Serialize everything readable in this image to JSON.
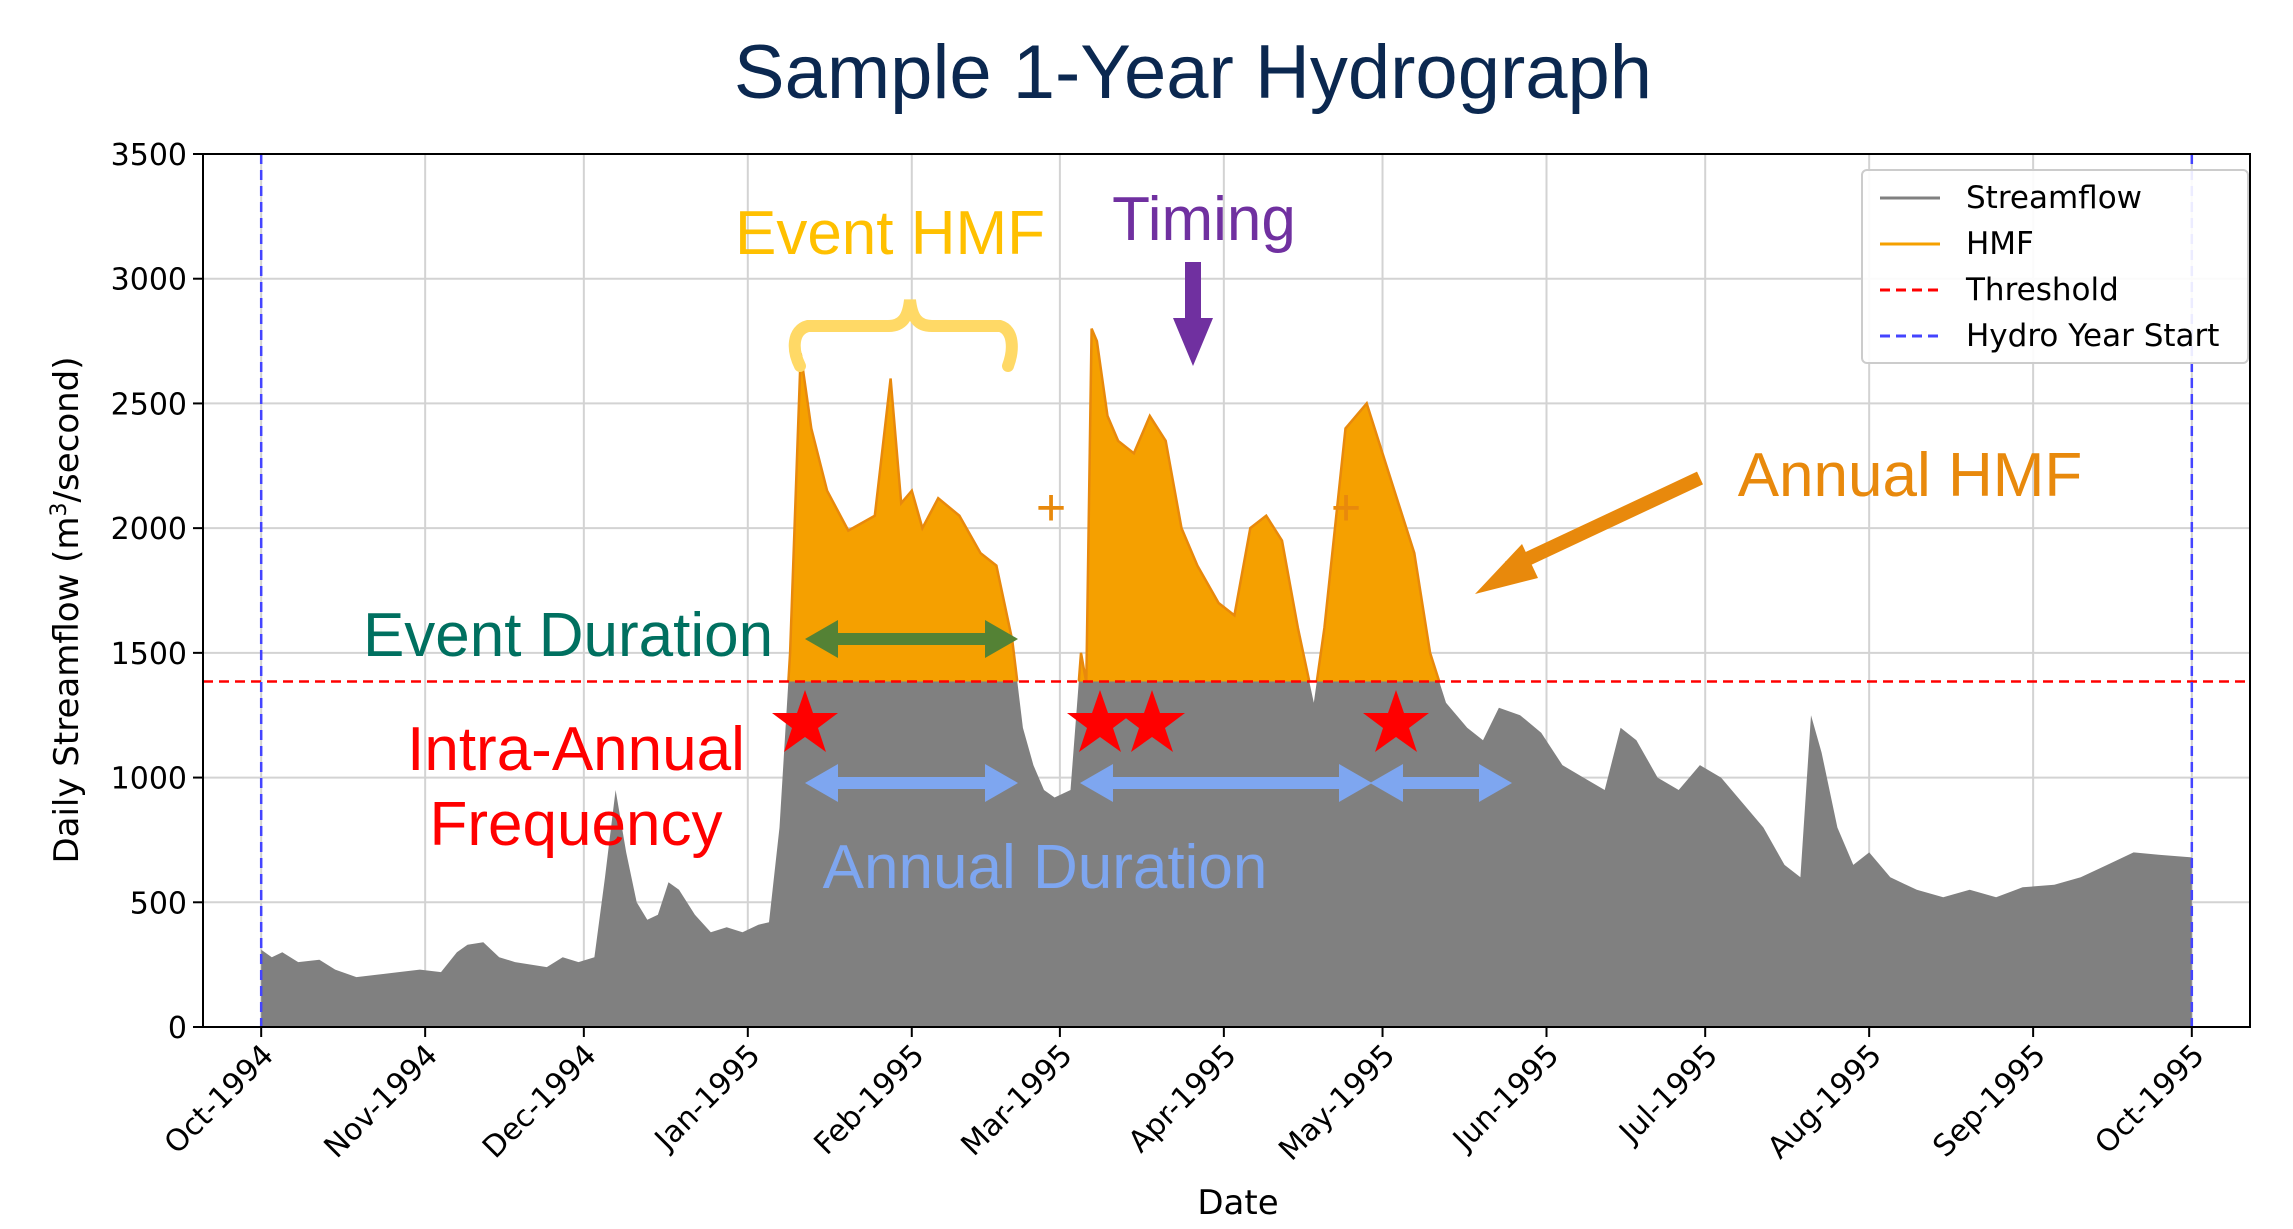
{
  "chart_data": {
    "type": "area",
    "title": "Sample 1-Year Hydrograph",
    "xlabel": "Date",
    "ylabel_prefix": "Daily Streamflow (m",
    "ylabel_sup": "3",
    "ylabel_suffix": "/second)",
    "ylim": [
      0,
      3500
    ],
    "yticks": [
      0,
      500,
      1000,
      1500,
      2000,
      2500,
      3000,
      3500
    ],
    "xlim": [
      "1994-09-20",
      "1995-10-12"
    ],
    "xticks": [
      "1994-10-01",
      "1994-11-01",
      "1994-12-01",
      "1995-01-01",
      "1995-02-01",
      "1995-03-01",
      "1995-04-01",
      "1995-05-01",
      "1995-06-01",
      "1995-07-01",
      "1995-08-01",
      "1995-09-01",
      "1995-10-01"
    ],
    "xtick_labels": [
      "Oct-1994",
      "Nov-1994",
      "Dec-1994",
      "Jan-1995",
      "Feb-1995",
      "Mar-1995",
      "Apr-1995",
      "May-1995",
      "Jun-1995",
      "Jul-1995",
      "Aug-1995",
      "Sep-1995",
      "Oct-1995"
    ],
    "grid": true,
    "legend_position": "top-right",
    "threshold": 1385,
    "hydro_year_start": [
      "1994-10-01",
      "1995-10-01"
    ],
    "series": [
      {
        "name": "Streamflow",
        "color": "#808080",
        "x": [
          "1994-10-01",
          "1994-10-03",
          "1994-10-05",
          "1994-10-08",
          "1994-10-12",
          "1994-10-15",
          "1994-10-19",
          "1994-10-23",
          "1994-10-27",
          "1994-10-31",
          "1994-11-04",
          "1994-11-07",
          "1994-11-09",
          "1994-11-12",
          "1994-11-15",
          "1994-11-18",
          "1994-11-21",
          "1994-11-24",
          "1994-11-27",
          "1994-11-30",
          "1994-12-03",
          "1994-12-05",
          "1994-12-07",
          "1994-12-09",
          "1994-12-11",
          "1994-12-13",
          "1994-12-15",
          "1994-12-17",
          "1994-12-19",
          "1994-12-22",
          "1994-12-25",
          "1994-12-28",
          "1994-12-31",
          "1995-01-03",
          "1995-01-05",
          "1995-01-07",
          "1995-01-09",
          "1995-01-11",
          "1995-01-13",
          "1995-01-16",
          "1995-01-20",
          "1995-01-25",
          "1995-01-28",
          "1995-01-30",
          "1995-02-01",
          "1995-02-03",
          "1995-02-06",
          "1995-02-10",
          "1995-02-14",
          "1995-02-17",
          "1995-02-20",
          "1995-02-22",
          "1995-02-24",
          "1995-02-26",
          "1995-02-28",
          "1995-03-03",
          "1995-03-05",
          "1995-03-06",
          "1995-03-07",
          "1995-03-08",
          "1995-03-10",
          "1995-03-12",
          "1995-03-15",
          "1995-03-18",
          "1995-03-21",
          "1995-03-24",
          "1995-03-27",
          "1995-03-31",
          "1995-04-03",
          "1995-04-06",
          "1995-04-09",
          "1995-04-12",
          "1995-04-15",
          "1995-04-18",
          "1995-04-20",
          "1995-04-24",
          "1995-04-28",
          "1995-05-01",
          "1995-05-04",
          "1995-05-07",
          "1995-05-10",
          "1995-05-13",
          "1995-05-15",
          "1995-05-17",
          "1995-05-20",
          "1995-05-23",
          "1995-05-27",
          "1995-05-31",
          "1995-06-04",
          "1995-06-08",
          "1995-06-12",
          "1995-06-15",
          "1995-06-18",
          "1995-06-22",
          "1995-06-26",
          "1995-06-30",
          "1995-07-04",
          "1995-07-08",
          "1995-07-12",
          "1995-07-16",
          "1995-07-19",
          "1995-07-21",
          "1995-07-23",
          "1995-07-26",
          "1995-07-29",
          "1995-08-01",
          "1995-08-05",
          "1995-08-10",
          "1995-08-15",
          "1995-08-20",
          "1995-08-25",
          "1995-08-30",
          "1995-09-05",
          "1995-09-10",
          "1995-09-15",
          "1995-09-20",
          "1995-09-25",
          "1995-10-01"
        ],
        "values": [
          310,
          280,
          300,
          260,
          270,
          230,
          200,
          210,
          220,
          230,
          220,
          300,
          330,
          340,
          280,
          260,
          250,
          240,
          280,
          260,
          280,
          600,
          950,
          700,
          500,
          430,
          450,
          580,
          550,
          450,
          380,
          400,
          380,
          410,
          420,
          800,
          1500,
          2700,
          2400,
          2150,
          1990,
          2050,
          2600,
          2100,
          2150,
          2000,
          2120,
          2050,
          1900,
          1850,
          1550,
          1200,
          1050,
          950,
          920,
          950,
          1500,
          1380,
          2800,
          2750,
          2450,
          2350,
          2300,
          2450,
          2350,
          2000,
          1850,
          1700,
          1650,
          2000,
          2050,
          1950,
          1600,
          1300,
          1600,
          2400,
          2500,
          2300,
          2100,
          1900,
          1500,
          1300,
          1250,
          1200,
          1150,
          1280,
          1250,
          1180,
          1050,
          1000,
          950,
          1200,
          1150,
          1000,
          950,
          1050,
          1000,
          900,
          800,
          650,
          600,
          1250,
          1100,
          800,
          650,
          700,
          600,
          550,
          520,
          550,
          520,
          560,
          570,
          600,
          650,
          700,
          690,
          680
        ]
      },
      {
        "name": "HMF",
        "color": "#f5a000"
      },
      {
        "name": "Threshold",
        "color": "#ff0000"
      },
      {
        "name": "Hydro Year Start",
        "color": "#4444ff"
      }
    ],
    "annotations": {
      "event_hmf": "Event HMF",
      "timing": "Timing",
      "annual_hmf": "Annual HMF",
      "event_duration": "Event Duration",
      "intra_annual_1": "Intra-Annual",
      "intra_annual_2": "Frequency",
      "annual_duration": "Annual Duration",
      "plus": "+"
    },
    "annotation_colors": {
      "event_hmf": "#ffc000",
      "timing": "#7030a0",
      "annual_hmf": "#e8890c",
      "event_duration": "#007060",
      "event_duration_arrow": "#548235",
      "intra_annual": "#ff0000",
      "annual_duration": "#7ea6f0"
    }
  }
}
